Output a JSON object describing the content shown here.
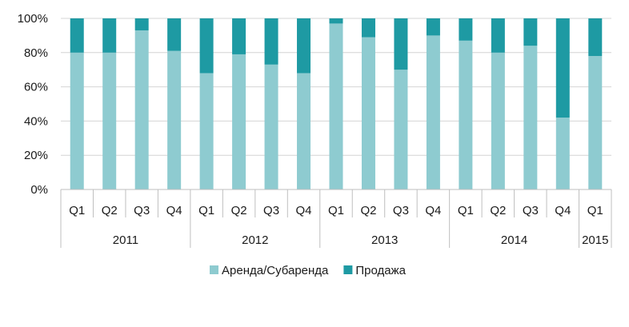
{
  "chart_data": {
    "type": "bar",
    "stacked": true,
    "percent": true,
    "categories": [
      "Q1",
      "Q2",
      "Q3",
      "Q4",
      "Q1",
      "Q2",
      "Q3",
      "Q4",
      "Q1",
      "Q2",
      "Q3",
      "Q4",
      "Q1",
      "Q2",
      "Q3",
      "Q4",
      "Q1"
    ],
    "years": [
      {
        "label": "2011",
        "count": 4
      },
      {
        "label": "2012",
        "count": 4
      },
      {
        "label": "2013",
        "count": 4
      },
      {
        "label": "2014",
        "count": 4
      },
      {
        "label": "2015",
        "count": 1
      }
    ],
    "series": [
      {
        "name": "Аренда/Субаренда",
        "color": "#8ecbd0",
        "values": [
          80,
          80,
          93,
          81,
          68,
          79,
          73,
          68,
          97,
          89,
          70,
          90,
          87,
          80,
          84,
          42,
          78
        ]
      },
      {
        "name": "Продажа",
        "color": "#1e9aa3",
        "values": [
          20,
          20,
          7,
          19,
          32,
          21,
          27,
          32,
          3,
          11,
          30,
          10,
          13,
          20,
          16,
          58,
          22
        ]
      }
    ],
    "ylim": [
      0,
      100
    ],
    "yticks": [
      "0%",
      "20%",
      "40%",
      "60%",
      "80%",
      "100%"
    ],
    "grid": true,
    "legend": "bottom",
    "xlabel": "",
    "ylabel": ""
  }
}
